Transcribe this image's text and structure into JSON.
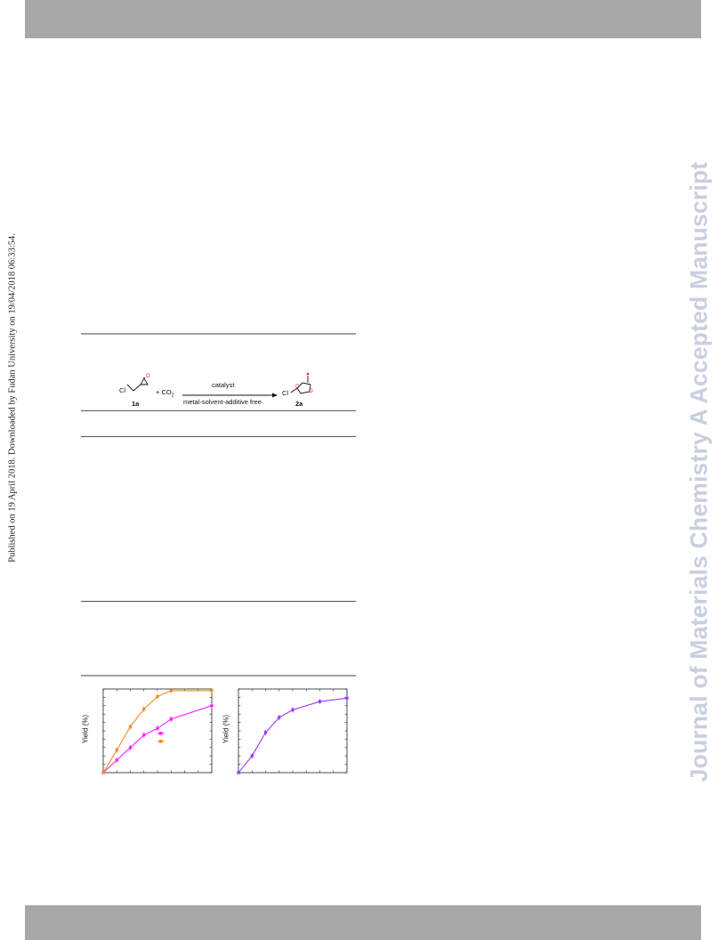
{
  "header_band": {
    "color": "#a7a7a7"
  },
  "footer_band": {
    "color": "#a7a7a7"
  },
  "left_margin_note": "Published on 19 April 2018. Downloaded by Fudan University on 19/04/2018 06:33:54.",
  "watermark": "Journal of Materials Chemistry A Accepted Manuscript",
  "scheme": {
    "reactant_label": "Cl",
    "co2_label": "+ CO",
    "co2_sub": "2",
    "arrow_top": "catalyst",
    "arrow_bottom": "metal-solvent-additive free",
    "product_label": "Cl",
    "compound_1": "1a",
    "compound_2": "2a",
    "colors": {
      "oxygen": "#dd2222",
      "bond": "#111111"
    }
  },
  "chart_data": [
    {
      "type": "line",
      "ylabel": "Yield (%)",
      "series": [
        {
          "color": "#ff22ff",
          "x": [
            0,
            1,
            2,
            3,
            4,
            5,
            8
          ],
          "y": [
            0,
            15,
            30,
            45,
            53,
            64,
            80
          ]
        },
        {
          "color": "#f08c22",
          "x": [
            0,
            1,
            2,
            3,
            4,
            5,
            8
          ],
          "y": [
            0,
            27,
            55,
            76,
            91,
            98,
            98
          ]
        }
      ],
      "xlim": [
        0,
        8
      ],
      "ylim": [
        0,
        100
      ],
      "legend": "center",
      "grid": false
    },
    {
      "type": "line",
      "ylabel": "Yield (%)",
      "series": [
        {
          "color": "#a033ff",
          "x": [
            0,
            1,
            2,
            3,
            4,
            6,
            8
          ],
          "y": [
            0,
            20,
            48,
            66,
            75,
            85,
            89
          ]
        }
      ],
      "xlim": [
        0,
        8
      ],
      "ylim": [
        0,
        100
      ],
      "grid": false
    }
  ]
}
